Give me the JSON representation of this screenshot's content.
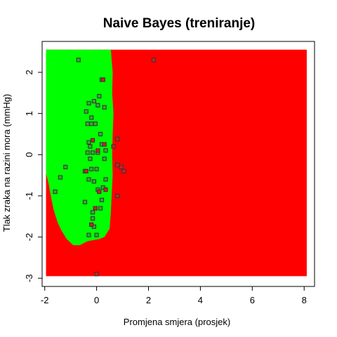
{
  "chart_data": {
    "type": "scatter",
    "title": "Naive Bayes (treniranje)",
    "xlabel": "Promjena smjera (prosjek)",
    "ylabel": "Tlak zraka na razini mora (mmHg)",
    "xlim": [
      -2.1,
      8.4
    ],
    "ylim": [
      -3.2,
      2.75
    ],
    "x_ticks": [
      -2,
      0,
      2,
      4,
      6,
      8
    ],
    "y_ticks": [
      -3,
      -2,
      -1,
      0,
      1,
      2
    ],
    "grid": false,
    "legend": "none",
    "colors": {
      "green_region": "#00ff00",
      "red_region": "#ff0000",
      "green_point": "#33aa33",
      "red_point": "#cc2222",
      "point_border": "#333333"
    },
    "decision_regions": {
      "x_range": [
        -1.95,
        8.1
      ],
      "y_range": [
        -2.95,
        2.55
      ],
      "green_region_boundary": [
        [
          -1.95,
          2.55
        ],
        [
          0.55,
          2.55
        ],
        [
          0.58,
          2.3
        ],
        [
          0.62,
          2.0
        ],
        [
          0.6,
          1.5
        ],
        [
          0.65,
          1.0
        ],
        [
          0.62,
          0.5
        ],
        [
          0.6,
          0.0
        ],
        [
          0.62,
          -0.5
        ],
        [
          0.58,
          -1.0
        ],
        [
          0.55,
          -1.4
        ],
        [
          0.5,
          -1.8
        ],
        [
          0.3,
          -2.0
        ],
        [
          0.1,
          -2.05
        ],
        [
          -0.35,
          -2.1
        ],
        [
          -0.65,
          -2.2
        ],
        [
          -0.9,
          -2.2
        ],
        [
          -1.15,
          -2.05
        ],
        [
          -1.35,
          -1.85
        ],
        [
          -1.5,
          -1.65
        ],
        [
          -1.65,
          -1.35
        ],
        [
          -1.75,
          -1.05
        ],
        [
          -1.85,
          -0.7
        ],
        [
          -1.95,
          -0.45
        ]
      ]
    },
    "series": [
      {
        "class": "green",
        "points": [
          [
            -0.7,
            2.3
          ],
          [
            0.2,
            1.82
          ],
          [
            0.1,
            1.42
          ],
          [
            -0.1,
            1.3
          ],
          [
            0.05,
            1.2
          ],
          [
            0.3,
            1.15
          ],
          [
            -0.3,
            1.25
          ],
          [
            -0.4,
            1.05
          ],
          [
            -0.2,
            0.9
          ],
          [
            -0.35,
            0.75
          ],
          [
            -0.2,
            0.75
          ],
          [
            -0.05,
            0.75
          ],
          [
            0.15,
            0.5
          ],
          [
            -0.3,
            0.3
          ],
          [
            -0.25,
            0.2
          ],
          [
            0.2,
            0.25
          ],
          [
            0.35,
            0.1
          ],
          [
            -0.35,
            0.05
          ],
          [
            -0.15,
            0.05
          ],
          [
            0.05,
            0.05
          ],
          [
            -0.25,
            -0.1
          ],
          [
            0.3,
            -0.1
          ],
          [
            -0.45,
            -0.4
          ],
          [
            -0.2,
            -0.35
          ],
          [
            0.0,
            -0.35
          ],
          [
            -1.4,
            -0.55
          ],
          [
            -0.3,
            -0.6
          ],
          [
            0.35,
            -0.6
          ],
          [
            -0.1,
            -0.65
          ],
          [
            -1.2,
            -0.3
          ],
          [
            0.05,
            -0.85
          ],
          [
            0.25,
            -0.8
          ],
          [
            -1.6,
            -0.9
          ],
          [
            0.2,
            -1.1
          ],
          [
            -0.45,
            -1.15
          ],
          [
            0.15,
            -1.3
          ],
          [
            -0.05,
            -1.3
          ],
          [
            -0.15,
            -1.55
          ],
          [
            -0.1,
            -1.75
          ],
          [
            -0.3,
            -1.95
          ],
          [
            0.0,
            -1.95
          ],
          [
            -0.15,
            -1.4
          ]
        ]
      },
      {
        "class": "red",
        "points": [
          [
            2.2,
            2.3
          ],
          [
            0.25,
            1.82
          ],
          [
            0.8,
            0.38
          ],
          [
            0.65,
            0.2
          ],
          [
            0.95,
            -0.3
          ],
          [
            1.05,
            -0.4
          ],
          [
            0.8,
            -0.25
          ],
          [
            0.8,
            -1.0
          ],
          [
            0.1,
            -0.9
          ],
          [
            0.35,
            -0.85
          ],
          [
            0.0,
            -2.9
          ],
          [
            -0.4,
            -0.4
          ],
          [
            0.05,
            0.1
          ],
          [
            -0.15,
            0.35
          ],
          [
            -0.05,
            -1.3
          ],
          [
            -0.2,
            -1.7
          ],
          [
            0.3,
            0.25
          ]
        ]
      }
    ]
  }
}
